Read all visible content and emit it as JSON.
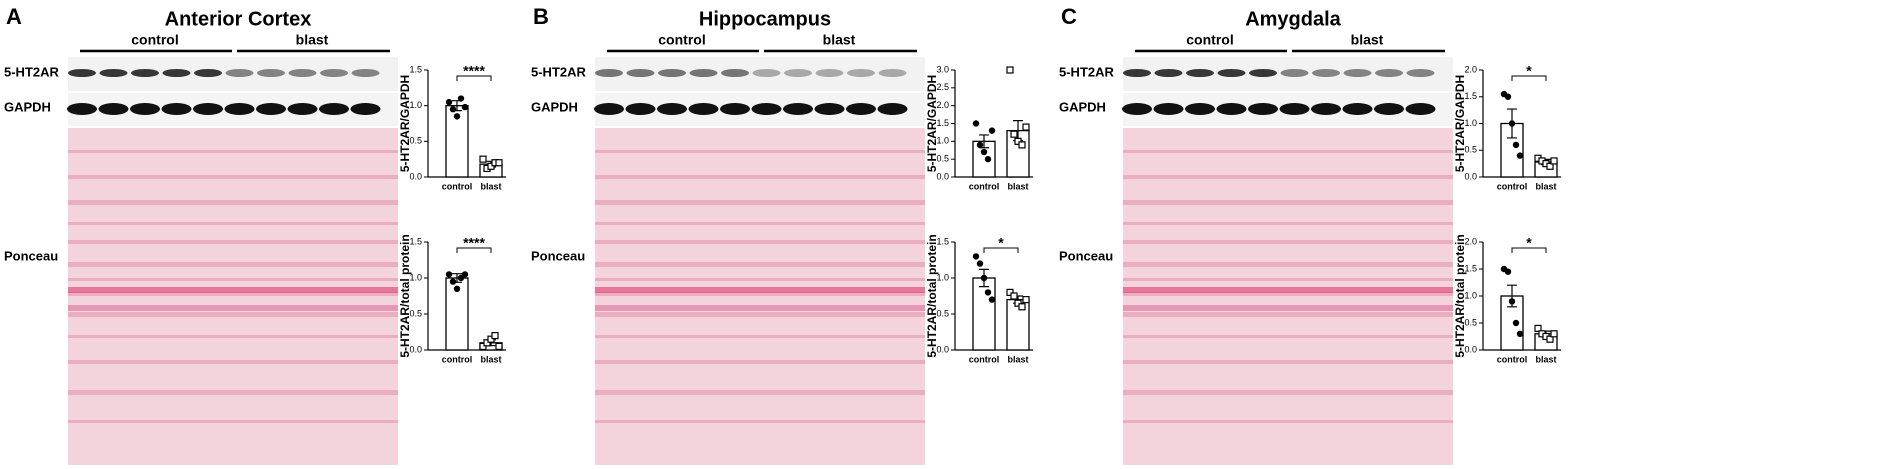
{
  "panels": [
    {
      "letter": "A",
      "title": "Anterior Cortex",
      "groups": [
        "control",
        "blast"
      ],
      "blot_labels": [
        "5-HT2AR",
        "GAPDH",
        "Ponceau"
      ]
    },
    {
      "letter": "B",
      "title": "Hippocampus",
      "groups": [
        "control",
        "blast"
      ],
      "blot_labels": [
        "5-HT2AR",
        "GAPDH",
        "Ponceau"
      ]
    },
    {
      "letter": "C",
      "title": "Amygdala",
      "groups": [
        "control",
        "blast"
      ],
      "blot_labels": [
        "5-HT2AR",
        "GAPDH",
        "Ponceau"
      ]
    }
  ],
  "chart_data": [
    {
      "type": "bar",
      "ylabel": "5-HT2AR/GAPDH",
      "categories": [
        "control",
        "blast"
      ],
      "values": [
        1.0,
        0.18
      ],
      "errors": [
        0.07,
        0.04
      ],
      "points": [
        [
          1.05,
          0.95,
          0.85,
          1.1,
          0.98
        ],
        [
          0.25,
          0.12,
          0.15,
          0.2,
          0.2
        ]
      ],
      "markers": [
        "circle",
        "square"
      ],
      "color": "#000000",
      "ylim": [
        0,
        1.5
      ],
      "yticks": [
        {
          "value": 0,
          "label": "0.0"
        },
        0.5,
        {
          "value": 1,
          "label": "1.0"
        },
        1.5
      ],
      "significance": "****"
    },
    {
      "type": "bar",
      "ylabel": "5-HT2AR/total protein",
      "categories": [
        "control",
        "blast"
      ],
      "values": [
        1.0,
        0.1
      ],
      "errors": [
        0.06,
        0.04
      ],
      "points": [
        [
          1.05,
          0.95,
          0.85,
          1.0,
          1.05
        ],
        [
          0.05,
          0.1,
          0.15,
          0.2,
          0.05
        ]
      ],
      "markers": [
        "circle",
        "square"
      ],
      "color": "#000000",
      "ylim": [
        0,
        1.5
      ],
      "yticks": [
        {
          "value": 0,
          "label": "0.0"
        },
        0.5,
        {
          "value": 1,
          "label": "1.0"
        },
        1.5
      ],
      "significance": "****"
    },
    {
      "type": "bar",
      "ylabel": "5-HT2AR/GAPDH",
      "categories": [
        "control",
        "blast"
      ],
      "values": [
        1.0,
        1.3
      ],
      "errors": [
        0.18,
        0.28
      ],
      "points": [
        [
          1.5,
          0.9,
          0.7,
          0.5,
          1.3
        ],
        [
          3.0,
          1.2,
          1.0,
          0.9,
          1.4
        ]
      ],
      "markers": [
        "circle",
        "square"
      ],
      "color": "#000000",
      "ylim": [
        0,
        3
      ],
      "yticks": [
        {
          "value": 0,
          "label": "0.0"
        },
        0.5,
        {
          "value": 1,
          "label": "1.0"
        },
        1.5,
        {
          "value": 2,
          "label": "2.0"
        },
        2.5,
        {
          "value": 3,
          "label": "3.0"
        }
      ]
    },
    {
      "type": "bar",
      "ylabel": "5-HT2AR/total protein",
      "categories": [
        "control",
        "blast"
      ],
      "values": [
        1.0,
        0.7
      ],
      "errors": [
        0.12,
        0.05
      ],
      "points": [
        [
          1.3,
          1.2,
          1.0,
          0.8,
          0.7
        ],
        [
          0.8,
          0.75,
          0.65,
          0.6,
          0.7
        ]
      ],
      "markers": [
        "circle",
        "square"
      ],
      "color": "#000000",
      "ylim": [
        0,
        1.5
      ],
      "yticks": [
        {
          "value": 0,
          "label": "0.0"
        },
        0.5,
        {
          "value": 1,
          "label": "1.0"
        },
        1.5
      ],
      "significance": "*"
    },
    {
      "type": "bar",
      "ylabel": "5-HT2AR/GAPDH",
      "categories": [
        "control",
        "blast"
      ],
      "values": [
        1.0,
        0.28
      ],
      "errors": [
        0.27,
        0.05
      ],
      "points": [
        [
          1.55,
          1.5,
          1.0,
          0.6,
          0.4
        ],
        [
          0.35,
          0.3,
          0.25,
          0.2,
          0.3
        ]
      ],
      "markers": [
        "circle",
        "square"
      ],
      "color": "#000000",
      "ylim": [
        0,
        2
      ],
      "yticks": [
        {
          "value": 0,
          "label": "0.0"
        },
        0.5,
        {
          "value": 1,
          "label": "1.0"
        },
        1.5,
        {
          "value": 2,
          "label": "2.0"
        }
      ],
      "significance": "*"
    },
    {
      "type": "bar",
      "ylabel": "5-HT2AR/total protein",
      "categories": [
        "control",
        "blast"
      ],
      "values": [
        1.0,
        0.3
      ],
      "errors": [
        0.2,
        0.05
      ],
      "points": [
        [
          1.5,
          1.45,
          0.9,
          0.5,
          0.3
        ],
        [
          0.4,
          0.3,
          0.25,
          0.2,
          0.3
        ]
      ],
      "markers": [
        "circle",
        "square"
      ],
      "color": "#000000",
      "ylim": [
        0,
        2
      ],
      "yticks": [
        {
          "value": 0,
          "label": "0.0"
        },
        0.5,
        {
          "value": 1,
          "label": "1.0"
        },
        1.5,
        {
          "value": 2,
          "label": "2.0"
        }
      ],
      "significance": "*"
    }
  ]
}
